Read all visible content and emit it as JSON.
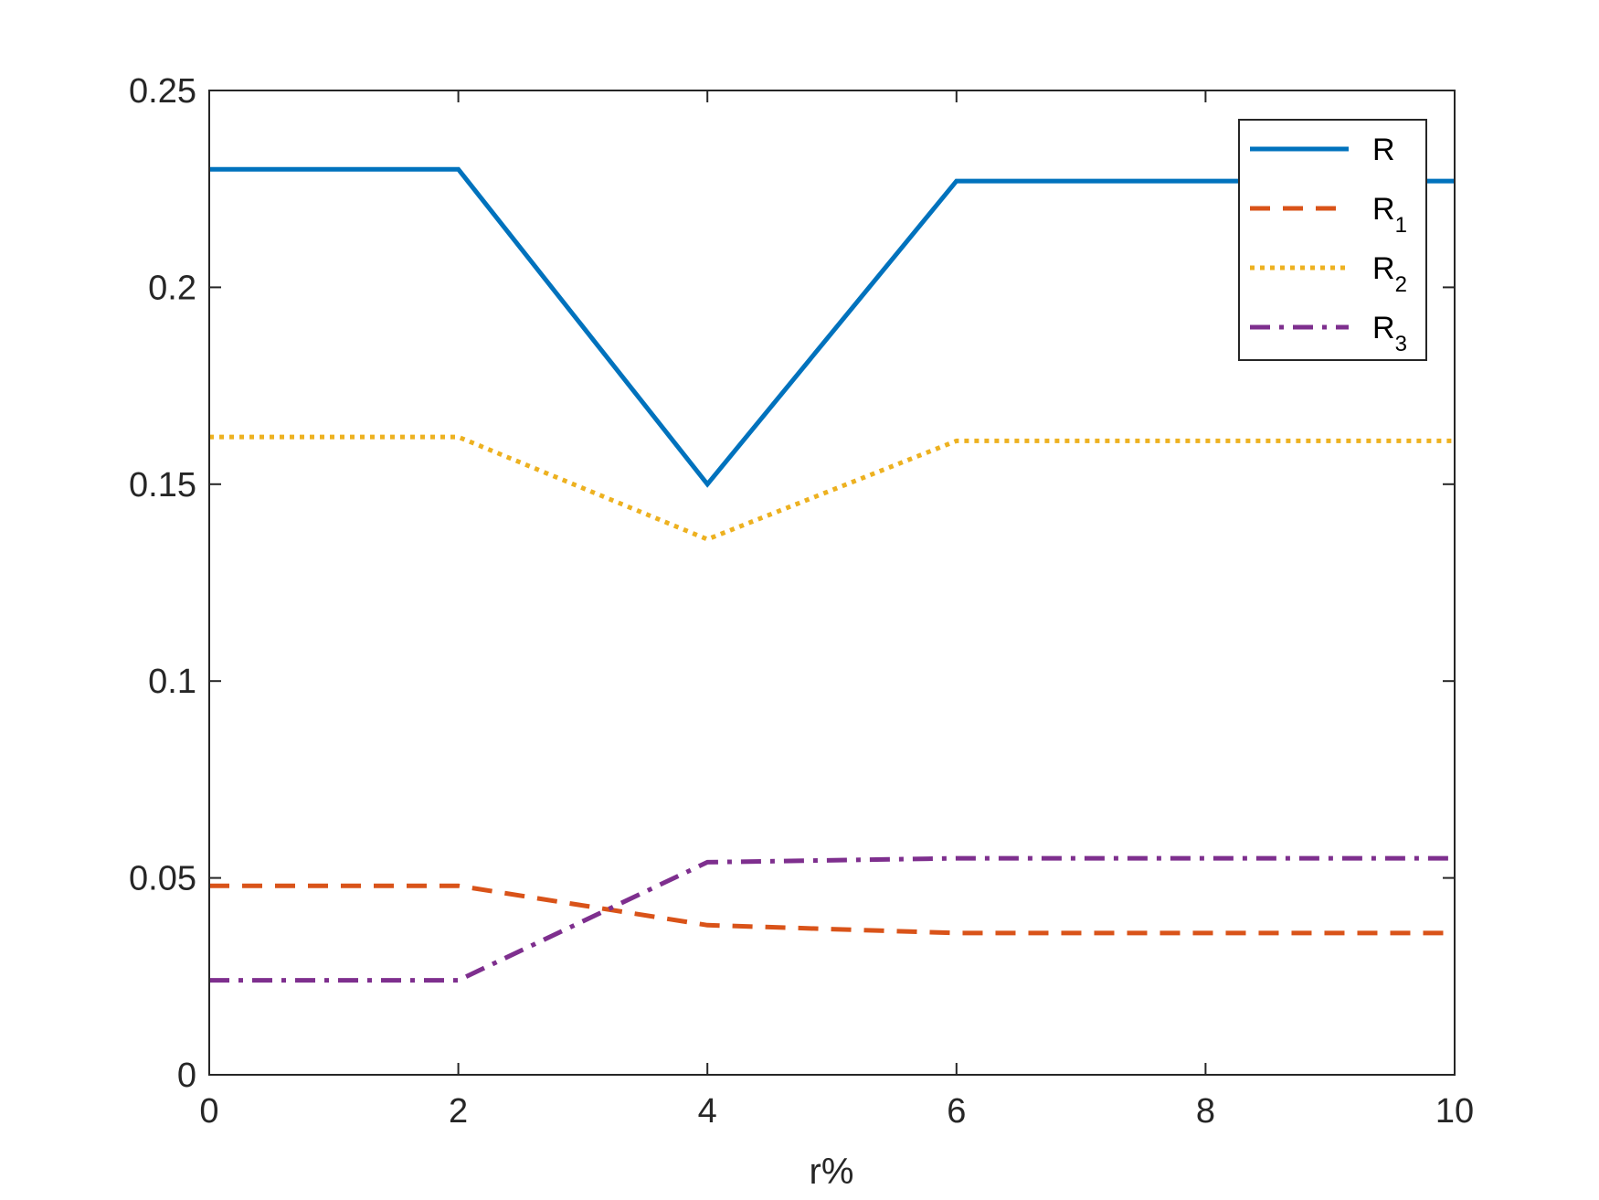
{
  "chart_data": {
    "type": "line",
    "title": "",
    "xlabel": "r%",
    "ylabel": "",
    "x": [
      0,
      2,
      4,
      6,
      8,
      10
    ],
    "xlim": [
      0,
      10
    ],
    "ylim": [
      0,
      0.25
    ],
    "xticks": [
      0,
      2,
      4,
      6,
      8,
      10
    ],
    "yticks": [
      0,
      0.05,
      0.1,
      0.15,
      0.2,
      0.25
    ],
    "xtick_labels": [
      "0",
      "2",
      "4",
      "6",
      "8",
      "10"
    ],
    "ytick_labels": [
      "0",
      "0.05",
      "0.1",
      "0.15",
      "0.2",
      "0.25"
    ],
    "grid": false,
    "legend_position": "top-right",
    "series": [
      {
        "name": "R",
        "sub": "",
        "color": "#0072BD",
        "style": "solid",
        "values": [
          0.23,
          0.23,
          0.15,
          0.227,
          0.227,
          0.227
        ]
      },
      {
        "name": "R",
        "sub": "1",
        "color": "#D95319",
        "style": "dashed",
        "values": [
          0.048,
          0.048,
          0.038,
          0.036,
          0.036,
          0.036
        ]
      },
      {
        "name": "R",
        "sub": "2",
        "color": "#EDB120",
        "style": "dotted",
        "values": [
          0.162,
          0.162,
          0.136,
          0.161,
          0.161,
          0.161
        ]
      },
      {
        "name": "R",
        "sub": "3",
        "color": "#7E2F8E",
        "style": "dashdot",
        "values": [
          0.024,
          0.024,
          0.054,
          0.055,
          0.055,
          0.055
        ]
      }
    ]
  }
}
